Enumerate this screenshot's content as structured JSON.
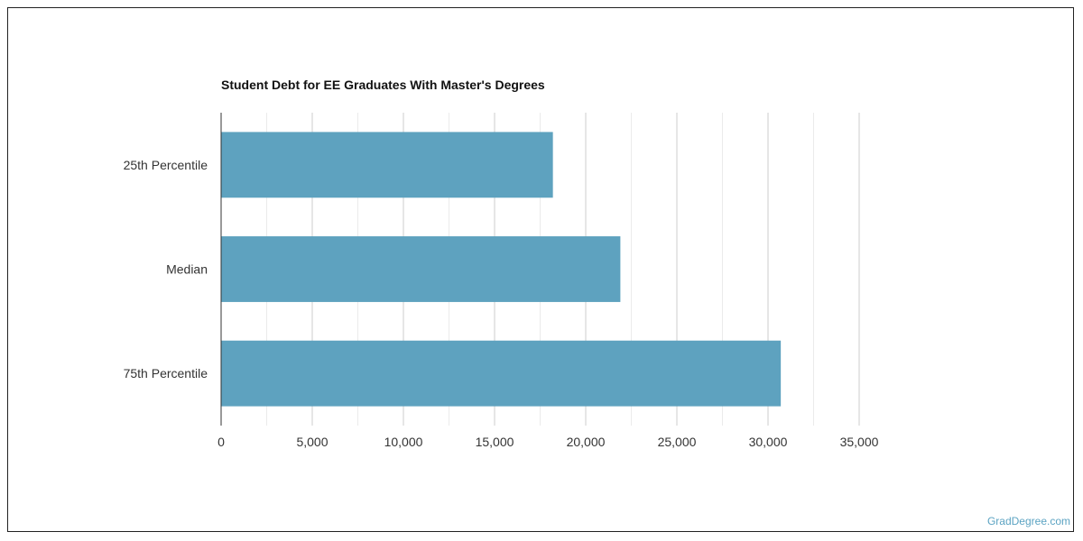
{
  "chart_data": {
    "type": "bar",
    "orientation": "horizontal",
    "title": "Student Debt for EE Graduates With Master's Degrees",
    "categories": [
      "25th Percentile",
      "Median",
      "75th Percentile"
    ],
    "values": [
      18200,
      21900,
      30700
    ],
    "xlim": [
      0,
      35000
    ],
    "x_ticks": [
      0,
      5000,
      10000,
      15000,
      20000,
      25000,
      30000,
      35000
    ],
    "x_tick_labels": [
      "0",
      "5,000",
      "10,000",
      "15,000",
      "20,000",
      "25,000",
      "30,000",
      "35,000"
    ],
    "grid": true,
    "bar_color": "#5ea2bf",
    "xlabel": "",
    "ylabel": ""
  },
  "footer": {
    "watermark": "GradDegree.com",
    "watermark_color": "#5ba3c2"
  }
}
